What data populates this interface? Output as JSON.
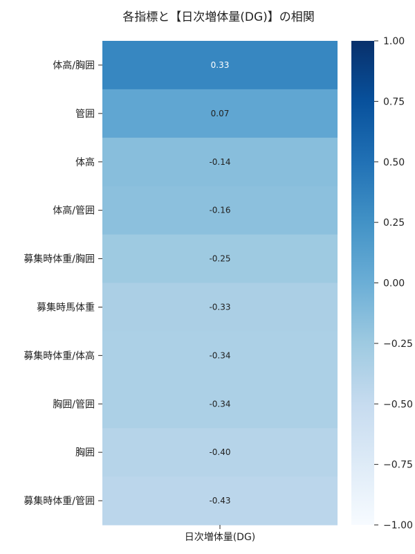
{
  "chart_data": {
    "type": "heatmap",
    "title": "各指標と【日次増体量(DG)】の相関",
    "column_label": "日次増体量(DG)",
    "rows": [
      "体高/胸囲",
      "管囲",
      "体高",
      "体高/管囲",
      "募集時体重/胸囲",
      "募集時馬体重",
      "募集時体重/体高",
      "胸囲/管囲",
      "胸囲",
      "募集時体重/管囲"
    ],
    "values": [
      0.33,
      0.07,
      -0.14,
      -0.16,
      -0.25,
      -0.33,
      -0.34,
      -0.34,
      -0.4,
      -0.43
    ],
    "value_labels": [
      "0.33",
      "0.07",
      "-0.14",
      "-0.16",
      "-0.25",
      "-0.33",
      "-0.34",
      "-0.34",
      "-0.40",
      "-0.43"
    ],
    "colorbar": {
      "min": -1.0,
      "max": 1.0,
      "ticks": [
        1.0,
        0.75,
        0.5,
        0.25,
        0.0,
        -0.25,
        -0.5,
        -0.75,
        -1.0
      ],
      "tick_labels": [
        "1.00",
        "0.75",
        "0.50",
        "0.25",
        "0.00",
        "−0.25",
        "−0.50",
        "−0.75",
        "−1.00"
      ],
      "colormap": "Blues",
      "colors": [
        "#f7fbff",
        "#deebf7",
        "#c6dbef",
        "#9ecae1",
        "#6baed6",
        "#4292c6",
        "#2171b5",
        "#08519c",
        "#08306b"
      ]
    }
  }
}
